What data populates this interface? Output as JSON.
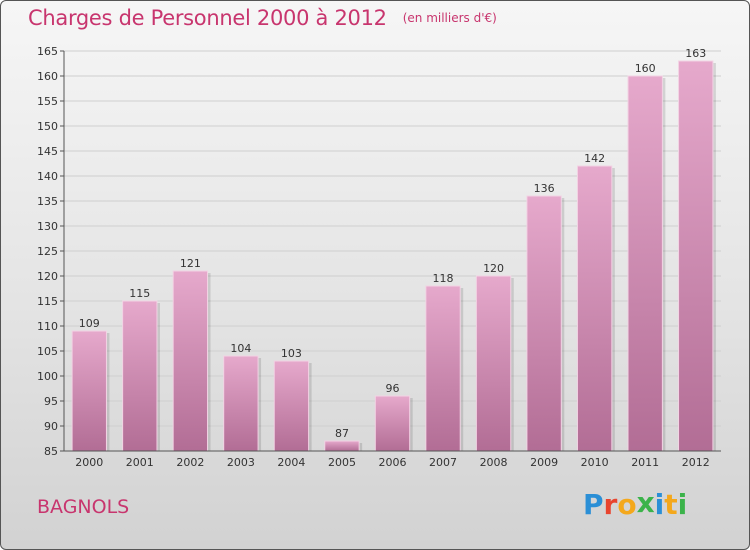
{
  "header": {
    "title": "Charges de Personnel 2000 à 2012",
    "subtitle": "(en milliers d'€)"
  },
  "footer": {
    "city": "BAGNOLS",
    "logo": {
      "letters": [
        "P",
        "r",
        "o",
        "x",
        "i",
        "t",
        "i"
      ],
      "colors": [
        "#2b8fd6",
        "#e8442e",
        "#f4a81c",
        "#3bb34a",
        "#2b8fd6",
        "#f4a81c",
        "#3bb34a"
      ]
    }
  },
  "chart_data": {
    "type": "bar",
    "categories": [
      "2000",
      "2001",
      "2002",
      "2003",
      "2004",
      "2005",
      "2006",
      "2007",
      "2008",
      "2009",
      "2010",
      "2011",
      "2012"
    ],
    "values": [
      109,
      115,
      121,
      104,
      103,
      87,
      96,
      118,
      120,
      136,
      142,
      160,
      163
    ],
    "title": "Charges de Personnel 2000 à 2012",
    "subtitle": "(en milliers d'€)",
    "ylim": [
      85,
      165
    ],
    "yticks": [
      85,
      90,
      95,
      100,
      105,
      110,
      115,
      120,
      125,
      130,
      135,
      140,
      145,
      150,
      155,
      160,
      165
    ],
    "grid": true,
    "legend": "none",
    "bar_color_top": "#e6a9cc",
    "bar_color_bottom": "#b26d95",
    "grid_color": "#cfcfcf"
  }
}
